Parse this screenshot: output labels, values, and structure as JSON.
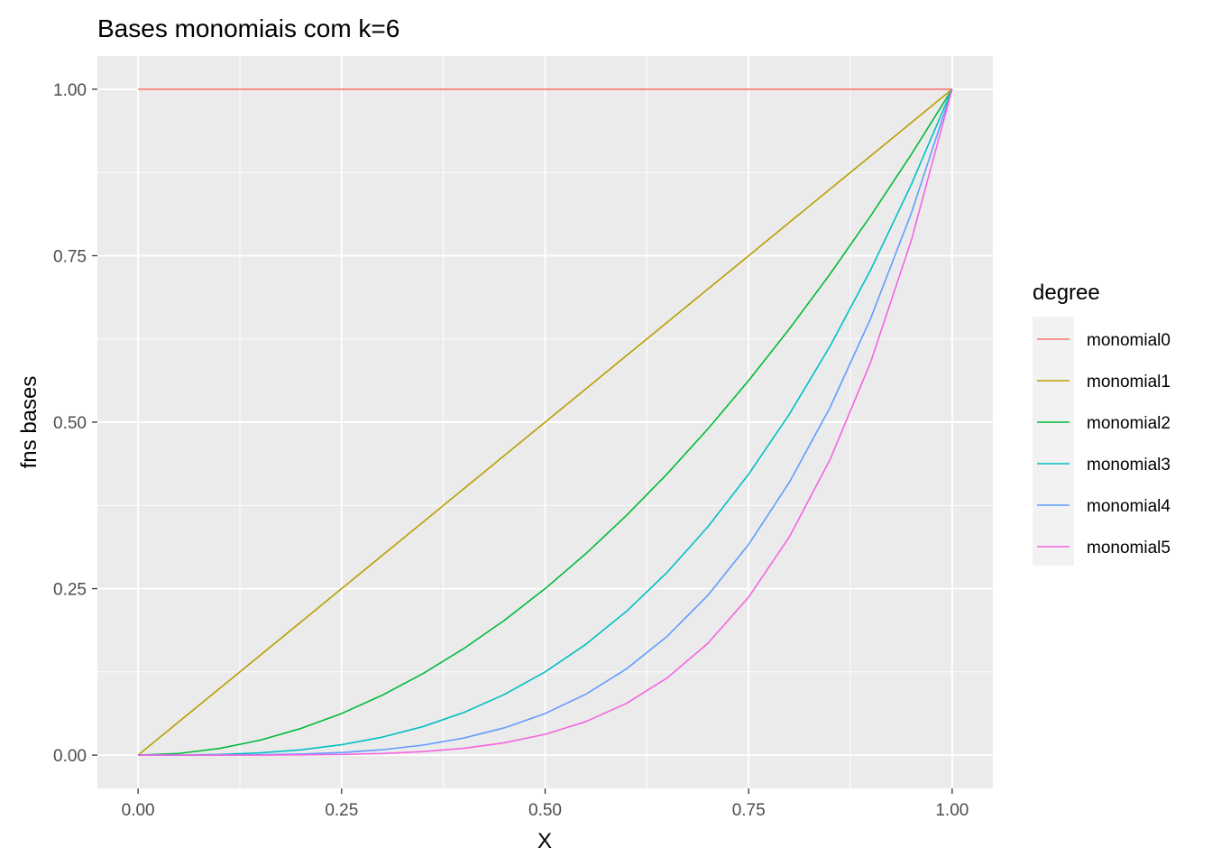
{
  "chart_data": {
    "type": "line",
    "title": "Bases monomiais com k=6",
    "xlabel": "X",
    "ylabel": "fns bases",
    "xlim": [
      -0.05,
      1.05
    ],
    "ylim": [
      -0.05,
      1.05
    ],
    "x_ticks": [
      0.0,
      0.25,
      0.5,
      0.75,
      1.0
    ],
    "x_tick_labels": [
      "0.00",
      "0.25",
      "0.50",
      "0.75",
      "1.00"
    ],
    "y_ticks": [
      0.0,
      0.25,
      0.5,
      0.75,
      1.0
    ],
    "y_tick_labels": [
      "0.00",
      "0.25",
      "0.50",
      "0.75",
      "1.00"
    ],
    "grid": true,
    "background": "#ebebeb",
    "legend": {
      "title": "degree",
      "position": "right"
    },
    "x": [
      0.0,
      0.05,
      0.1,
      0.15,
      0.2,
      0.25,
      0.3,
      0.35,
      0.4,
      0.45,
      0.5,
      0.55,
      0.6,
      0.65,
      0.7,
      0.75,
      0.8,
      0.85,
      0.9,
      0.95,
      1.0
    ],
    "series": [
      {
        "name": "monomial0",
        "color": "#F8766D",
        "values": [
          1,
          1,
          1,
          1,
          1,
          1,
          1,
          1,
          1,
          1,
          1,
          1,
          1,
          1,
          1,
          1,
          1,
          1,
          1,
          1,
          1
        ]
      },
      {
        "name": "monomial1",
        "color": "#B79F00",
        "values": [
          0,
          0.05,
          0.1,
          0.15,
          0.2,
          0.25,
          0.3,
          0.35,
          0.4,
          0.45,
          0.5,
          0.55,
          0.6,
          0.65,
          0.7,
          0.75,
          0.8,
          0.85,
          0.9,
          0.95,
          1.0
        ]
      },
      {
        "name": "monomial2",
        "color": "#00BA38",
        "values": [
          0,
          0.0025,
          0.01,
          0.0225,
          0.04,
          0.0625,
          0.09,
          0.1225,
          0.16,
          0.2025,
          0.25,
          0.3025,
          0.36,
          0.4225,
          0.49,
          0.5625,
          0.64,
          0.7225,
          0.81,
          0.9025,
          1.0
        ]
      },
      {
        "name": "monomial3",
        "color": "#00BFC4",
        "values": [
          0,
          0.000125,
          0.001,
          0.003375,
          0.008,
          0.015625,
          0.027,
          0.042875,
          0.064,
          0.091125,
          0.125,
          0.166375,
          0.216,
          0.274625,
          0.343,
          0.421875,
          0.512,
          0.614125,
          0.729,
          0.857375,
          1.0
        ]
      },
      {
        "name": "monomial4",
        "color": "#619CFF",
        "values": [
          0,
          6e-06,
          0.0001,
          0.000506,
          0.0016,
          0.003906,
          0.0081,
          0.015006,
          0.0256,
          0.041006,
          0.0625,
          0.091506,
          0.1296,
          0.178506,
          0.2401,
          0.316406,
          0.4096,
          0.522006,
          0.6561,
          0.814506,
          1.0
        ]
      },
      {
        "name": "monomial5",
        "color": "#F564E3",
        "values": [
          0,
          3e-07,
          1e-05,
          7.6e-05,
          0.00032,
          0.000977,
          0.00243,
          0.005252,
          0.01024,
          0.018453,
          0.03125,
          0.050328,
          0.07776,
          0.116029,
          0.16807,
          0.237305,
          0.32768,
          0.443705,
          0.59049,
          0.773781,
          1.0
        ]
      }
    ]
  }
}
